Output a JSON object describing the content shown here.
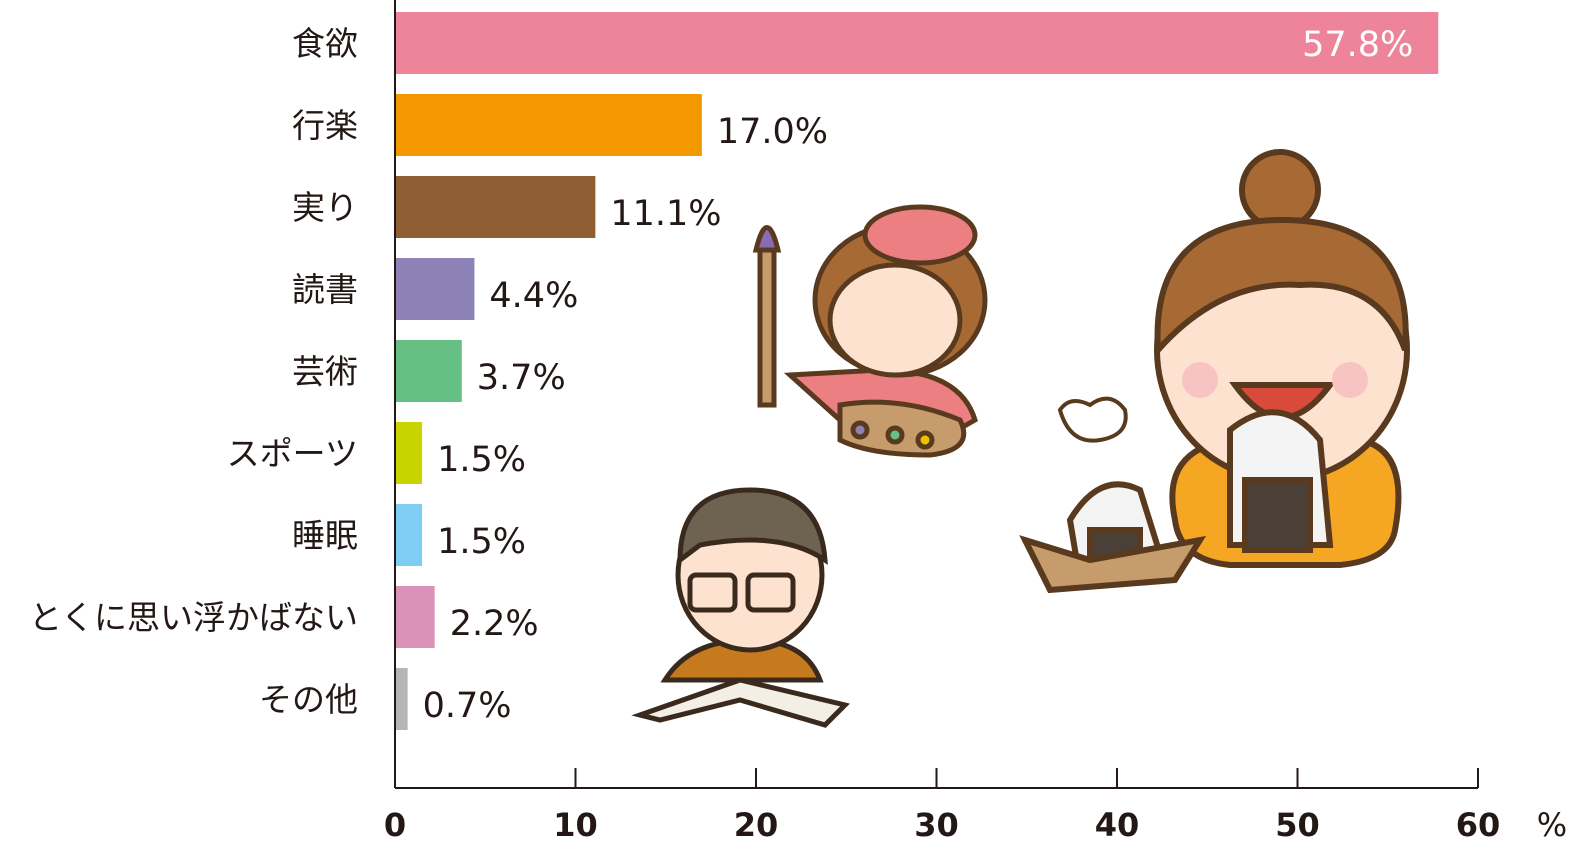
{
  "chart_data": {
    "type": "bar",
    "orientation": "horizontal",
    "categories": [
      "食欲",
      "行楽",
      "実り",
      "読書",
      "芸術",
      "スポーツ",
      "睡眠",
      "とくに思い浮かばない",
      "その他"
    ],
    "values": [
      57.8,
      17.0,
      11.1,
      4.4,
      3.7,
      1.5,
      1.5,
      2.2,
      0.7
    ],
    "value_labels": [
      "57.8%",
      "17.0%",
      "11.1%",
      "4.4%",
      "3.7%",
      "1.5%",
      "1.5%",
      "2.2%",
      "0.7%"
    ],
    "colors": [
      "#ee8499",
      "#f39800",
      "#8f5e33",
      "#8c82b5",
      "#66bf83",
      "#c8d400",
      "#7ecef4",
      "#db92b8",
      "#b5b5b5"
    ],
    "xlim": [
      0,
      60
    ],
    "xticks": [
      "0",
      "10",
      "20",
      "30",
      "40",
      "50",
      "60"
    ],
    "xunit": "%",
    "grid": false,
    "legend": "none"
  }
}
